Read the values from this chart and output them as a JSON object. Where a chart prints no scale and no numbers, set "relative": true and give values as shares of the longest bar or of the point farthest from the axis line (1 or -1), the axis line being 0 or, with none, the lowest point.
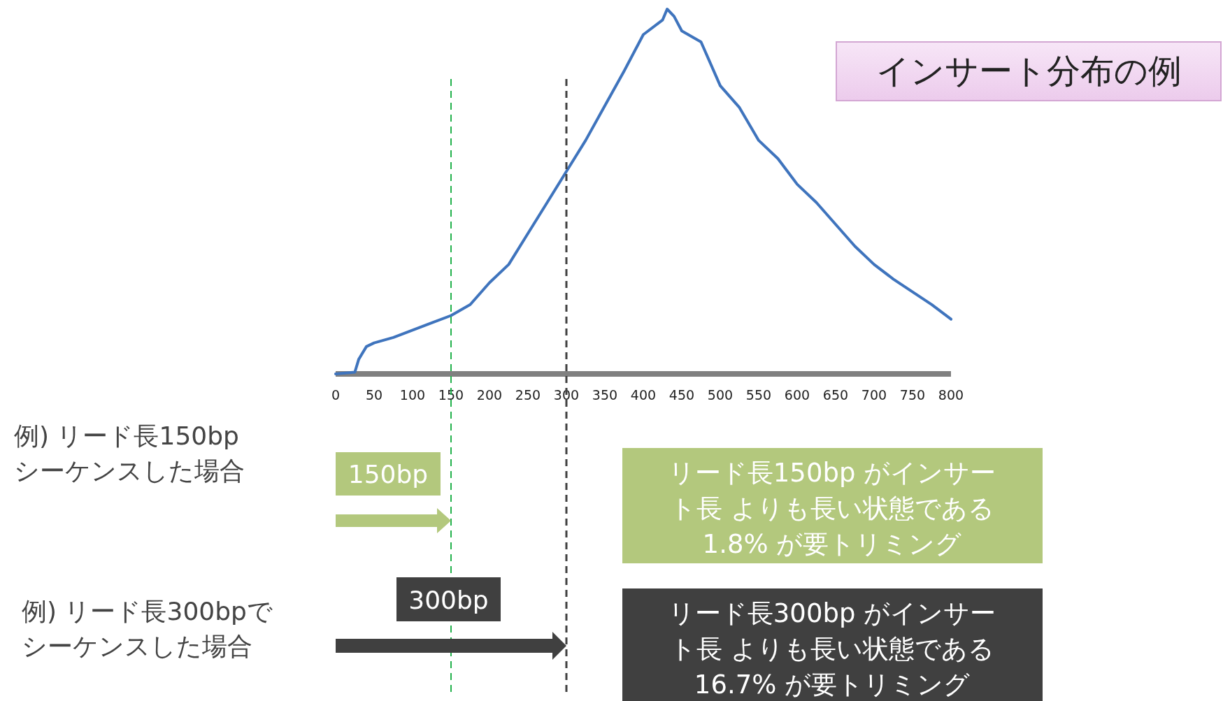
{
  "chart_data": {
    "type": "line",
    "title": "インサート分布の例",
    "relative": true,
    "x": [
      0,
      25,
      30,
      40,
      50,
      75,
      100,
      125,
      150,
      175,
      200,
      225,
      250,
      275,
      300,
      325,
      350,
      375,
      400,
      425,
      431,
      440,
      450,
      475,
      500,
      525,
      550,
      575,
      600,
      625,
      650,
      675,
      700,
      725,
      750,
      775,
      800
    ],
    "series": [
      {
        "color": "#3f74bd",
        "values": [
          0,
          0.005,
          0.04,
          0.075,
          0.085,
          0.1,
          0.12,
          0.14,
          0.16,
          0.19,
          0.25,
          0.3,
          0.385,
          0.47,
          0.555,
          0.64,
          0.735,
          0.83,
          0.93,
          0.97,
          1.0,
          0.98,
          0.94,
          0.91,
          0.79,
          0.73,
          0.64,
          0.59,
          0.52,
          0.47,
          0.41,
          0.35,
          0.3,
          0.26,
          0.225,
          0.19,
          0.15
        ]
      }
    ],
    "xlim": [
      0,
      800
    ],
    "xticks": [
      0,
      50,
      100,
      150,
      200,
      250,
      300,
      350,
      400,
      450,
      500,
      550,
      600,
      650,
      700,
      750,
      800
    ],
    "ref_lines": [
      {
        "axis": "x",
        "value": 150,
        "color": "#22b14c",
        "line_style": "dashed"
      },
      {
        "axis": "x",
        "value": 300,
        "color": "#404040",
        "line_style": "dashed"
      }
    ],
    "annotations": [
      "例) リード長150bpシーケンスした場合",
      "150bp",
      "リード長150bp がインサート長 よりも長い状態である1.8% が要トリミング",
      "例) リード長300bpでシーケンスした場合",
      "300bp",
      "リード長300bp がインサート長 よりも長い状態である16.7% が要トリミング"
    ]
  }
}
